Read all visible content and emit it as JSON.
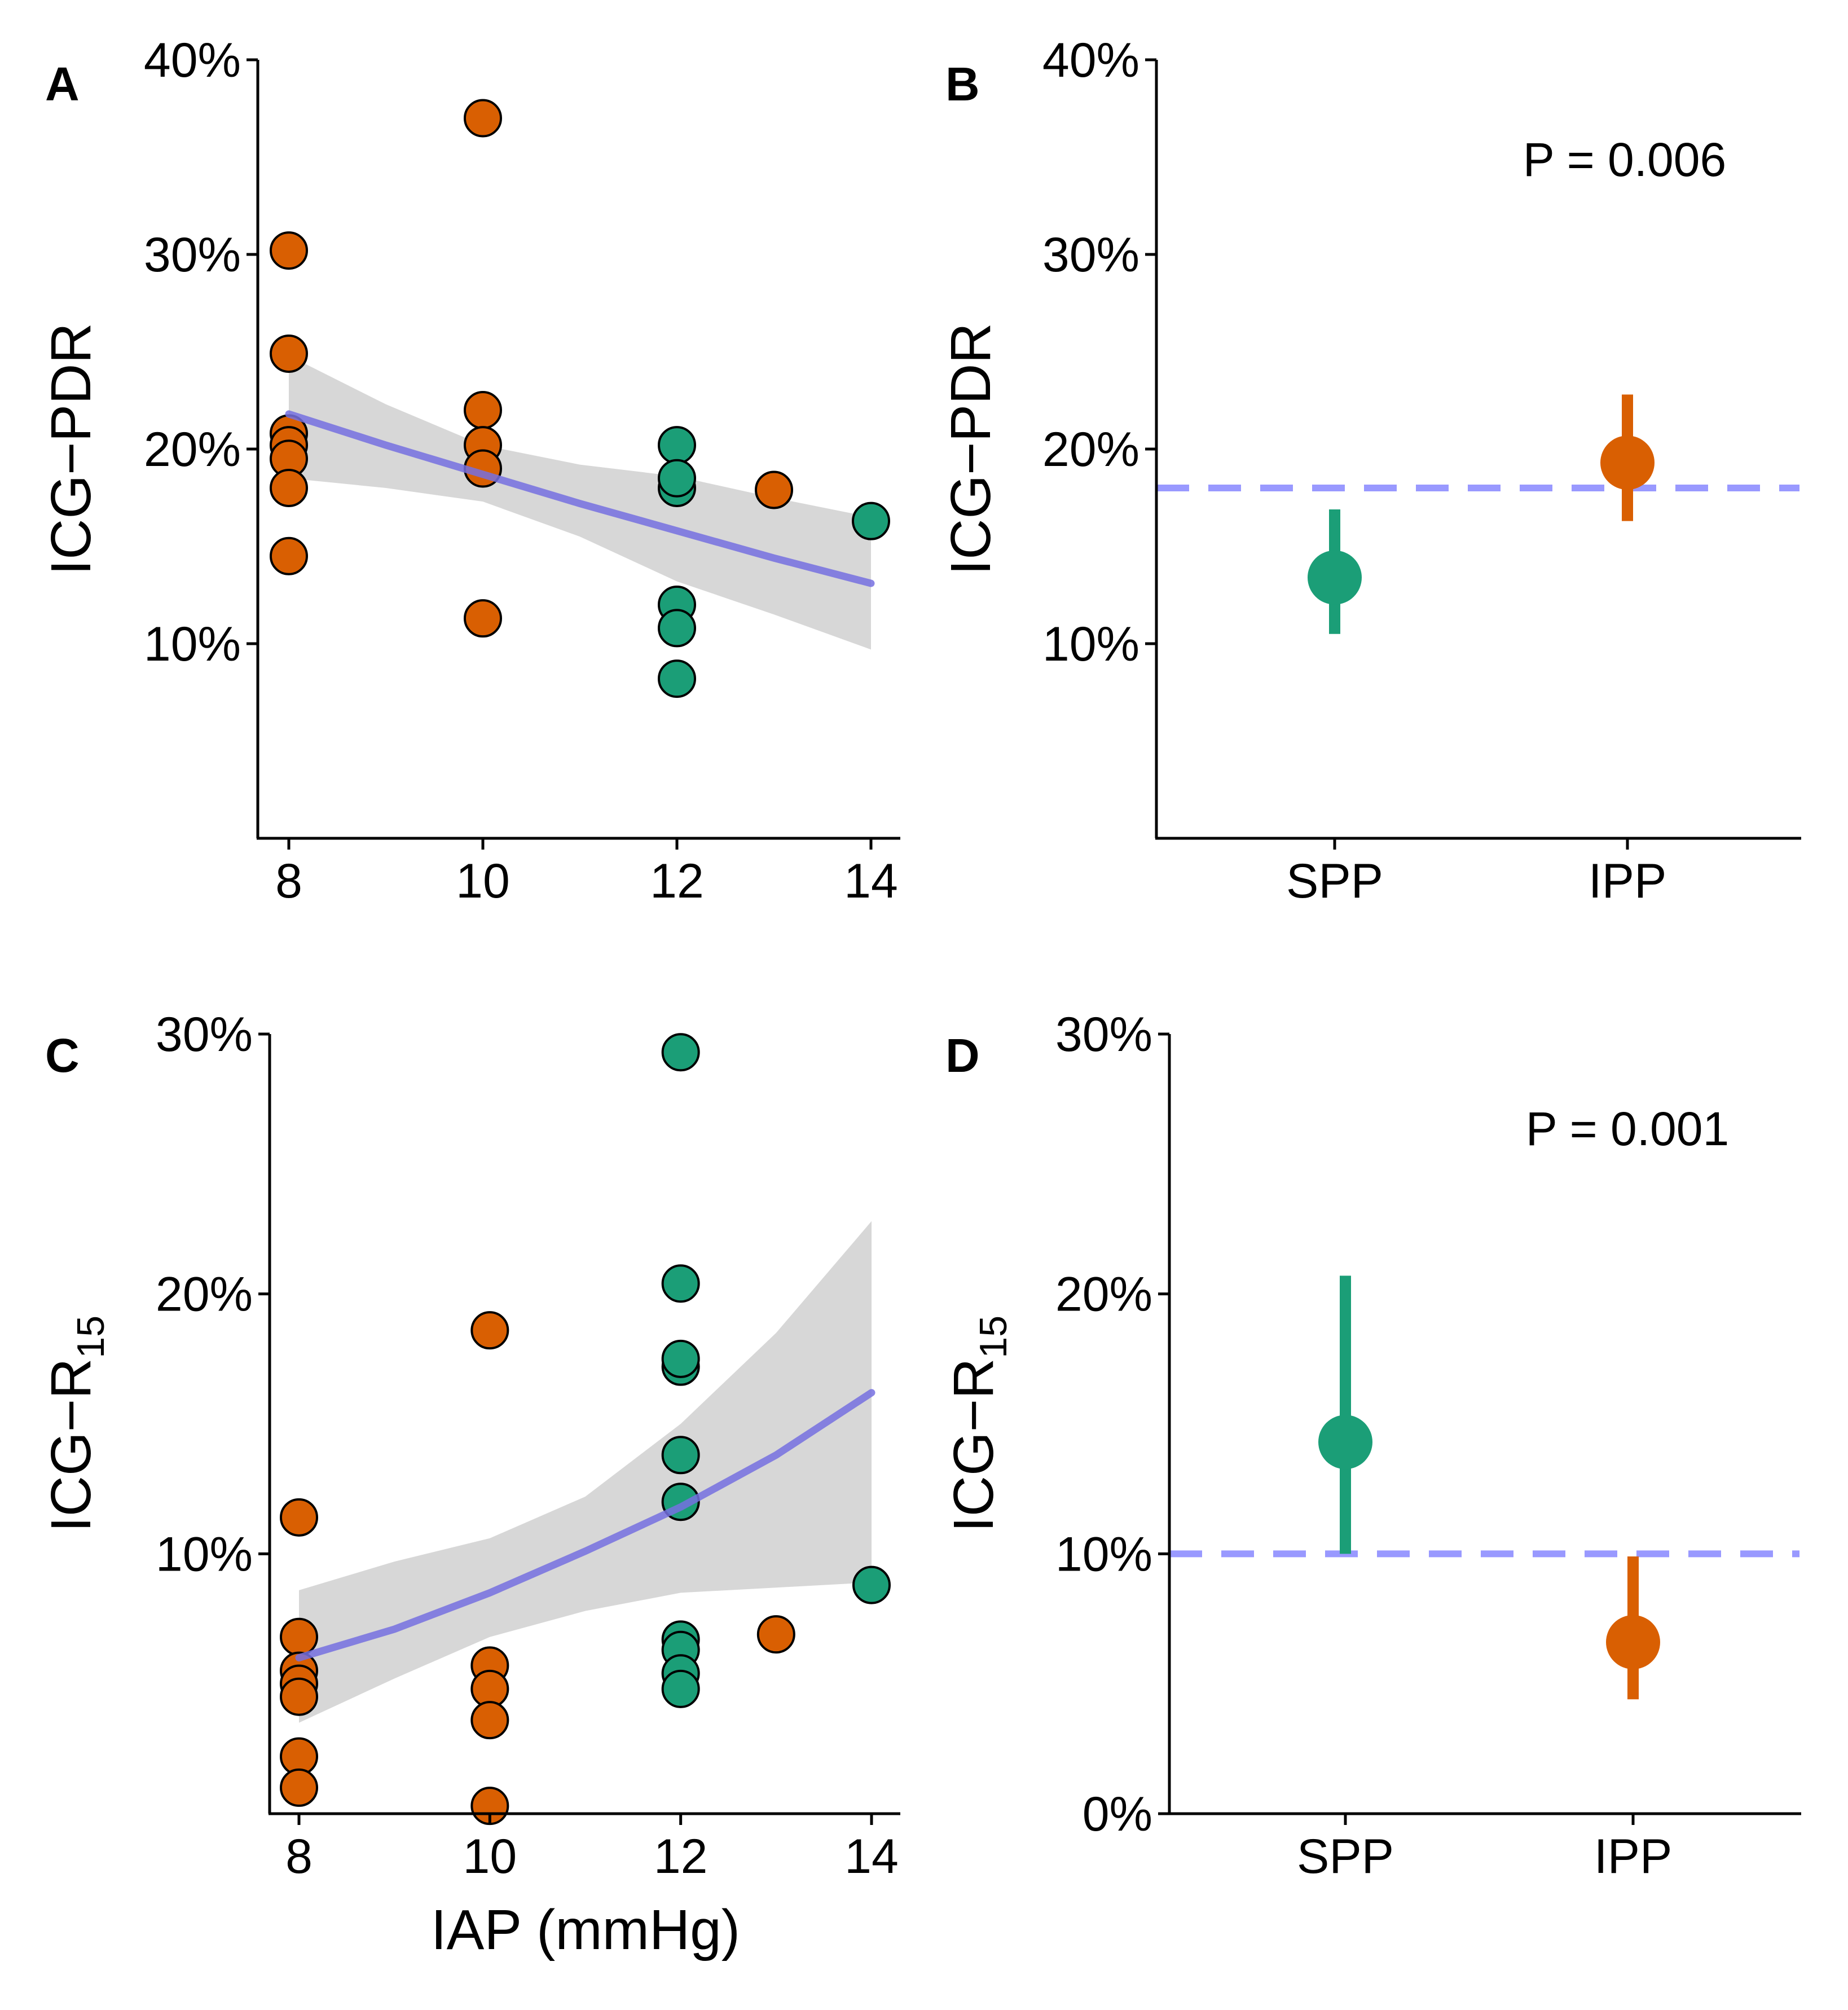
{
  "colors": {
    "spp": "#1b9e77",
    "ipp": "#d95f02",
    "fit": "#7570e0",
    "ribbon": "#d3d3d3",
    "reference": "#9999ff"
  },
  "chart_data": [
    {
      "panel": "A",
      "type": "scatter",
      "xlabel": "",
      "ylabel": "ICG−PDR",
      "xlim": [
        7.85,
        14.15
      ],
      "ylim": [
        0,
        40
      ],
      "xticks": [
        8,
        10,
        12,
        14
      ],
      "xtick_labels": [
        "8",
        "10",
        "12",
        "14"
      ],
      "yticks": [
        10,
        20,
        30,
        40
      ],
      "ytick_labels": [
        "10%",
        "20%",
        "30%",
        "40%"
      ],
      "points": [
        {
          "x": 8,
          "y": 30.2,
          "group": "IPP"
        },
        {
          "x": 8,
          "y": 24.9,
          "group": "IPP"
        },
        {
          "x": 8,
          "y": 20.8,
          "group": "IPP"
        },
        {
          "x": 8,
          "y": 20.2,
          "group": "IPP"
        },
        {
          "x": 8,
          "y": 19.5,
          "group": "IPP"
        },
        {
          "x": 8,
          "y": 18.0,
          "group": "IPP"
        },
        {
          "x": 8,
          "y": 14.5,
          "group": "IPP"
        },
        {
          "x": 10,
          "y": 37.0,
          "group": "IPP"
        },
        {
          "x": 10,
          "y": 22.0,
          "group": "IPP"
        },
        {
          "x": 10,
          "y": 20.2,
          "group": "IPP"
        },
        {
          "x": 10,
          "y": 19.0,
          "group": "IPP"
        },
        {
          "x": 10,
          "y": 11.3,
          "group": "IPP"
        },
        {
          "x": 12,
          "y": 20.2,
          "group": "SPP"
        },
        {
          "x": 12,
          "y": 18.0,
          "group": "SPP"
        },
        {
          "x": 12,
          "y": 18.5,
          "group": "SPP"
        },
        {
          "x": 12,
          "y": 12.0,
          "group": "SPP"
        },
        {
          "x": 12,
          "y": 10.8,
          "group": "SPP"
        },
        {
          "x": 12,
          "y": 8.2,
          "group": "SPP"
        },
        {
          "x": 13,
          "y": 17.9,
          "group": "IPP"
        },
        {
          "x": 14,
          "y": 16.3,
          "group": "SPP"
        }
      ],
      "fit_line": {
        "x": [
          8,
          9,
          10,
          11,
          12,
          13,
          14
        ],
        "y": [
          21.8,
          20.2,
          18.7,
          17.2,
          15.8,
          14.4,
          13.1
        ]
      },
      "ribbon": {
        "x": [
          8,
          9,
          10,
          11,
          12,
          13,
          14
        ],
        "lower": [
          18.5,
          18.0,
          17.3,
          15.5,
          13.2,
          11.5,
          9.7
        ],
        "upper": [
          24.8,
          22.3,
          20.2,
          19.2,
          18.6,
          17.5,
          16.5
        ]
      }
    },
    {
      "panel": "B",
      "type": "pointrange",
      "xlabel": "",
      "ylabel": "ICG−PDR",
      "ylim": [
        0,
        40
      ],
      "yticks": [
        10,
        20,
        30,
        40
      ],
      "ytick_labels": [
        "10%",
        "20%",
        "30%",
        "40%"
      ],
      "categories": [
        "SPP",
        "IPP"
      ],
      "estimates": [
        {
          "group": "SPP",
          "mean": 13.4,
          "lower": 10.5,
          "upper": 16.9
        },
        {
          "group": "IPP",
          "mean": 19.3,
          "lower": 16.3,
          "upper": 22.8
        }
      ],
      "reference_line": 18,
      "annotation": "P = 0.006"
    },
    {
      "panel": "C",
      "type": "scatter",
      "xlabel": "IAP (mmHg)",
      "ylabel": "ICG−R",
      "ylabel_subscript": "15",
      "xlim": [
        7.85,
        14.15
      ],
      "ylim": [
        0,
        30
      ],
      "xticks": [
        8,
        10,
        12,
        14
      ],
      "xtick_labels": [
        "8",
        "10",
        "12",
        "14"
      ],
      "yticks": [
        10,
        20,
        30
      ],
      "ytick_labels": [
        "10%",
        "20%",
        "30%"
      ],
      "points": [
        {
          "x": 8,
          "y": 11.4,
          "group": "IPP"
        },
        {
          "x": 8,
          "y": 6.8,
          "group": "IPP"
        },
        {
          "x": 8,
          "y": 5.5,
          "group": "IPP"
        },
        {
          "x": 8,
          "y": 5.0,
          "group": "IPP"
        },
        {
          "x": 8,
          "y": 4.5,
          "group": "IPP"
        },
        {
          "x": 8,
          "y": 2.2,
          "group": "IPP"
        },
        {
          "x": 8,
          "y": 1.0,
          "group": "IPP"
        },
        {
          "x": 10,
          "y": 18.6,
          "group": "IPP"
        },
        {
          "x": 10,
          "y": 5.7,
          "group": "IPP"
        },
        {
          "x": 10,
          "y": 4.8,
          "group": "IPP"
        },
        {
          "x": 10,
          "y": 3.6,
          "group": "IPP"
        },
        {
          "x": 10,
          "y": 0.3,
          "group": "IPP"
        },
        {
          "x": 12,
          "y": 29.3,
          "group": "SPP"
        },
        {
          "x": 12,
          "y": 20.4,
          "group": "SPP"
        },
        {
          "x": 12,
          "y": 17.2,
          "group": "SPP"
        },
        {
          "x": 12,
          "y": 17.5,
          "group": "SPP"
        },
        {
          "x": 12,
          "y": 13.8,
          "group": "SPP"
        },
        {
          "x": 12,
          "y": 12.0,
          "group": "SPP"
        },
        {
          "x": 12,
          "y": 6.7,
          "group": "SPP"
        },
        {
          "x": 12,
          "y": 6.3,
          "group": "SPP"
        },
        {
          "x": 12,
          "y": 5.4,
          "group": "SPP"
        },
        {
          "x": 12,
          "y": 4.8,
          "group": "SPP"
        },
        {
          "x": 13,
          "y": 6.9,
          "group": "IPP"
        },
        {
          "x": 14,
          "y": 8.8,
          "group": "SPP"
        }
      ],
      "fit_line": {
        "x": [
          8,
          9,
          10,
          11,
          12,
          13,
          14
        ],
        "y": [
          6.0,
          7.1,
          8.5,
          10.1,
          11.8,
          13.8,
          16.2
        ]
      },
      "ribbon": {
        "x": [
          8,
          9,
          10,
          11,
          12,
          13,
          14
        ],
        "lower": [
          3.5,
          5.2,
          6.8,
          7.8,
          8.5,
          8.7,
          8.9
        ],
        "upper": [
          8.6,
          9.7,
          10.6,
          12.2,
          15.0,
          18.5,
          22.8
        ]
      }
    },
    {
      "panel": "D",
      "type": "pointrange",
      "xlabel": "",
      "ylabel": "ICG−R",
      "ylabel_subscript": "15",
      "ylim": [
        0,
        30
      ],
      "yticks": [
        0,
        10,
        20,
        30
      ],
      "ytick_labels": [
        "0%",
        "10%",
        "20%",
        "30%"
      ],
      "categories": [
        "SPP",
        "IPP"
      ],
      "estimates": [
        {
          "group": "SPP",
          "mean": 14.3,
          "lower": 10.0,
          "upper": 20.7
        },
        {
          "group": "IPP",
          "mean": 6.6,
          "lower": 4.4,
          "upper": 9.9
        }
      ],
      "reference_line": 10,
      "annotation": "P = 0.001"
    }
  ]
}
